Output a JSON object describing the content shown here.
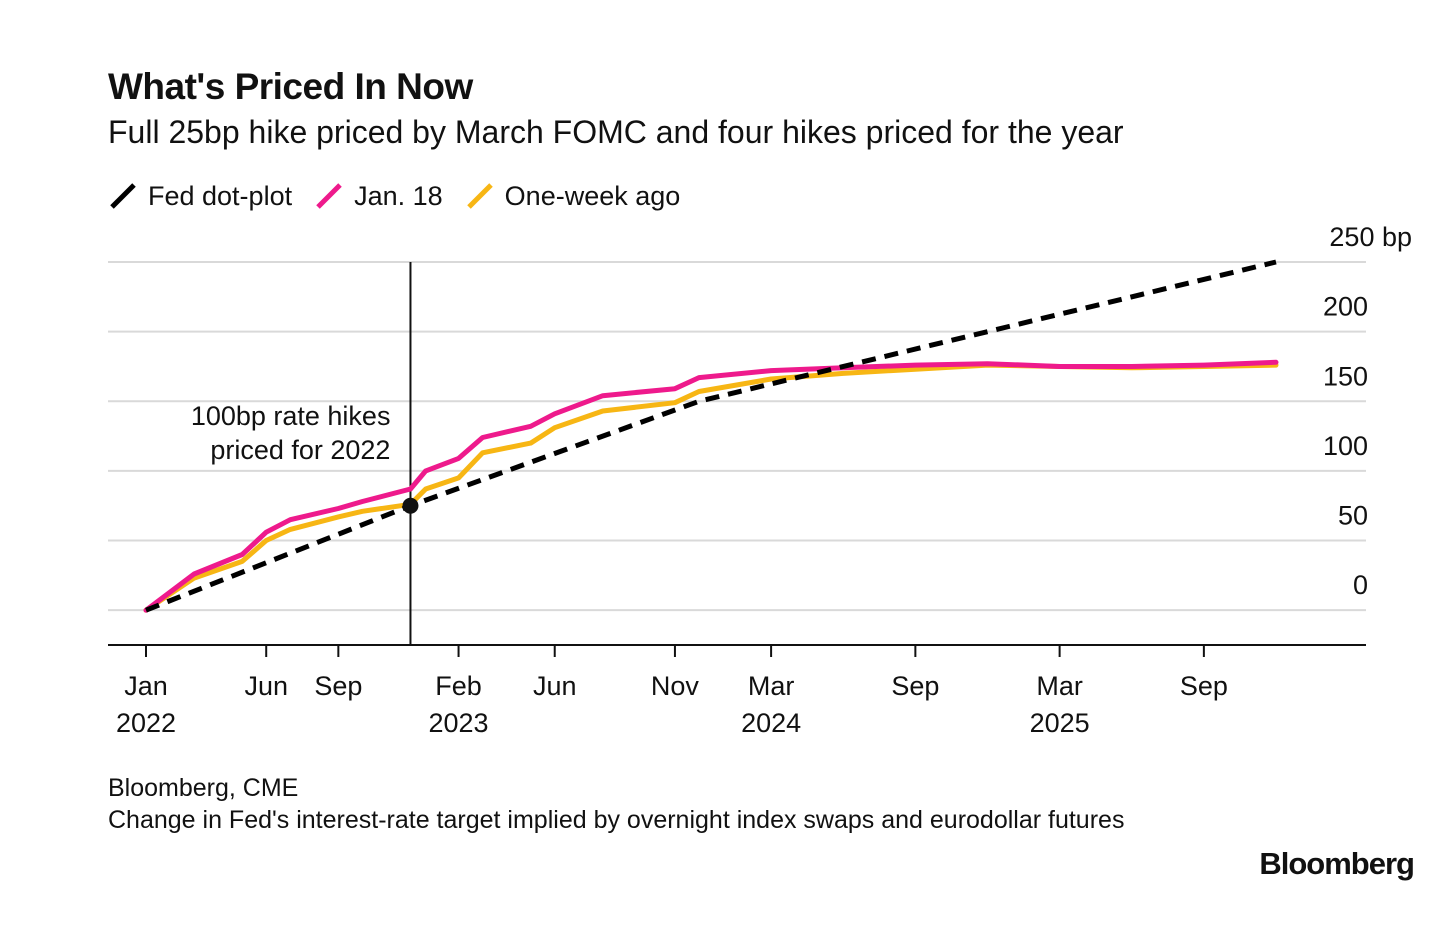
{
  "chart_data": {
    "type": "line",
    "title": "What's Priced In Now",
    "subtitle": "Full 25bp hike priced by March FOMC and four hikes priced for the year",
    "x_ticks": [
      {
        "date": "2022-01",
        "label": "Jan",
        "year": "2022"
      },
      {
        "date": "2022-06",
        "label": "Jun",
        "year": ""
      },
      {
        "date": "2022-09",
        "label": "Sep",
        "year": ""
      },
      {
        "date": "2023-02",
        "label": "Feb",
        "year": "2023"
      },
      {
        "date": "2023-06",
        "label": "Jun",
        "year": ""
      },
      {
        "date": "2023-11",
        "label": "Nov",
        "year": ""
      },
      {
        "date": "2024-03",
        "label": "Mar",
        "year": "2024"
      },
      {
        "date": "2024-09",
        "label": "Sep",
        "year": ""
      },
      {
        "date": "2025-03",
        "label": "Mar",
        "year": "2025"
      },
      {
        "date": "2025-09",
        "label": "Sep",
        "year": ""
      }
    ],
    "xlim": [
      "2021-12",
      "2026-05"
    ],
    "y_ticks": [
      {
        "value": 0,
        "label": "0"
      },
      {
        "value": 50,
        "label": "50"
      },
      {
        "value": 100,
        "label": "100"
      },
      {
        "value": 150,
        "label": "150"
      },
      {
        "value": 200,
        "label": "200"
      },
      {
        "value": 250,
        "label": "250 bp"
      }
    ],
    "ylim": [
      -25,
      250
    ],
    "grid": true,
    "legend_position": "top-left",
    "series": [
      {
        "name": "Fed dot-plot",
        "color": "#000000",
        "style": "dashed",
        "points": [
          [
            "2022-01",
            0
          ],
          [
            "2022-12",
            75
          ],
          [
            "2023-12",
            150
          ],
          [
            "2025-12",
            250
          ]
        ]
      },
      {
        "name": "Jan. 18",
        "color": "#ee1a8c",
        "style": "solid",
        "points": [
          [
            "2022-01",
            0
          ],
          [
            "2022-03",
            26
          ],
          [
            "2022-05",
            40
          ],
          [
            "2022-06",
            56
          ],
          [
            "2022-07",
            65
          ],
          [
            "2022-09",
            73
          ],
          [
            "2022-10",
            78
          ],
          [
            "2022-12",
            87
          ],
          [
            "2022-12-20",
            100
          ],
          [
            "2023-02",
            109
          ],
          [
            "2023-03",
            124
          ],
          [
            "2023-05",
            132
          ],
          [
            "2023-06",
            141
          ],
          [
            "2023-08",
            154
          ],
          [
            "2023-11",
            159
          ],
          [
            "2023-12",
            167
          ],
          [
            "2024-03",
            172
          ],
          [
            "2024-06",
            174
          ],
          [
            "2024-09",
            176
          ],
          [
            "2024-12",
            177
          ],
          [
            "2025-03",
            175
          ],
          [
            "2025-06",
            175
          ],
          [
            "2025-09",
            176
          ],
          [
            "2025-12",
            178
          ]
        ]
      },
      {
        "name": "One-week ago",
        "color": "#f7b614",
        "style": "solid",
        "points": [
          [
            "2022-01",
            0
          ],
          [
            "2022-03",
            23
          ],
          [
            "2022-05",
            35
          ],
          [
            "2022-06",
            50
          ],
          [
            "2022-07",
            58
          ],
          [
            "2022-09",
            67
          ],
          [
            "2022-10",
            71
          ],
          [
            "2022-12",
            76
          ],
          [
            "2022-12-20",
            87
          ],
          [
            "2023-02",
            95
          ],
          [
            "2023-03",
            113
          ],
          [
            "2023-05",
            120
          ],
          [
            "2023-06",
            131
          ],
          [
            "2023-08",
            143
          ],
          [
            "2023-11",
            149
          ],
          [
            "2023-12",
            157
          ],
          [
            "2024-03",
            166
          ],
          [
            "2024-06",
            170
          ],
          [
            "2024-09",
            173
          ],
          [
            "2024-12",
            176
          ],
          [
            "2025-03",
            175
          ],
          [
            "2025-06",
            174
          ],
          [
            "2025-09",
            175
          ],
          [
            "2025-12",
            176
          ]
        ]
      }
    ],
    "annotation": {
      "date": "2022-12",
      "value": 75,
      "lines": [
        "100bp rate hikes",
        "priced for 2022"
      ]
    },
    "source": "Bloomberg, CME",
    "note": "Change in Fed's interest-rate target implied by overnight index swaps and eurodollar futures",
    "brand": "Bloomberg"
  }
}
